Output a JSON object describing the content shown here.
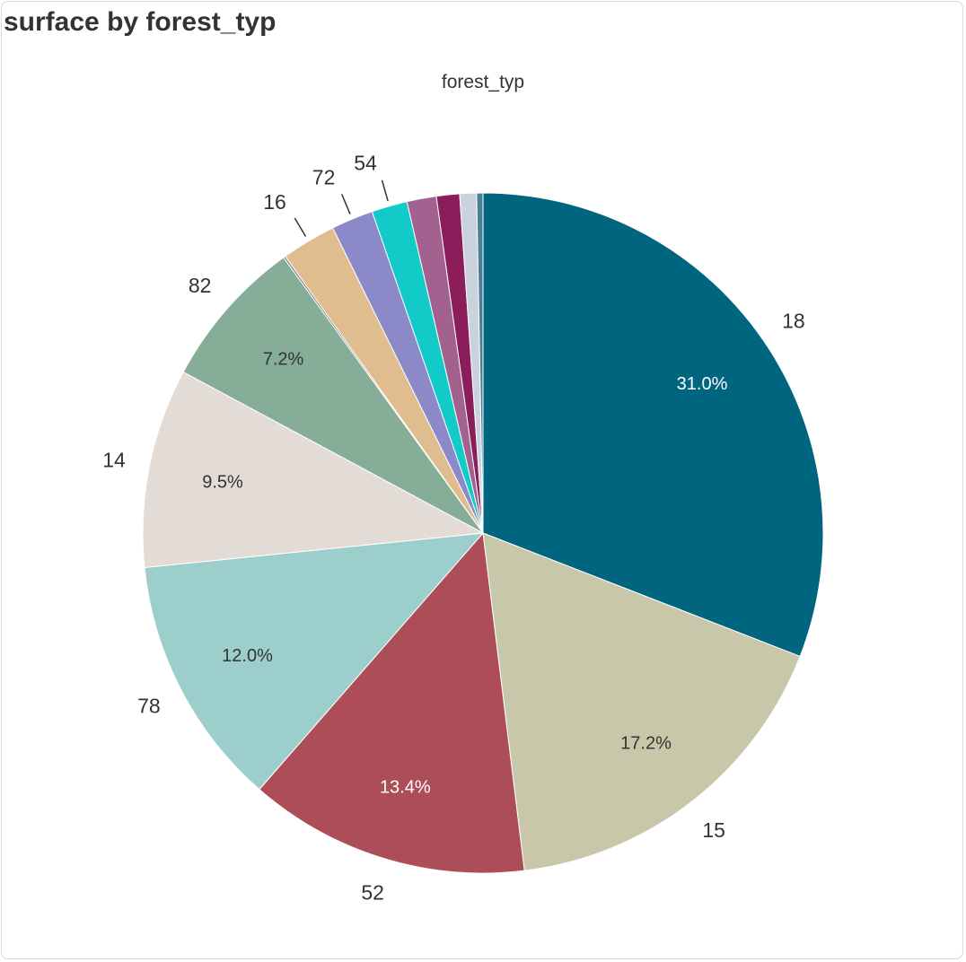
{
  "panel": {
    "title": "surface by forest_typ"
  },
  "chart_data": {
    "type": "pie",
    "title": "surface by forest_typ",
    "legend_title": "forest_typ",
    "slices": [
      {
        "label": "18",
        "percent": 31.0,
        "percent_label": "31.0%",
        "color": "#00657f",
        "text_color": "#ffffff"
      },
      {
        "label": "15",
        "percent": 17.2,
        "percent_label": "17.2%",
        "color": "#c8c7a9",
        "text_color": "#333333"
      },
      {
        "label": "52",
        "percent": 13.4,
        "percent_label": "13.4%",
        "color": "#ad4d58",
        "text_color": "#ffffff"
      },
      {
        "label": "78",
        "percent": 12.0,
        "percent_label": "12.0%",
        "color": "#9ccfcc",
        "text_color": "#333333"
      },
      {
        "label": "14",
        "percent": 9.5,
        "percent_label": "9.5%",
        "color": "#e3dbd6",
        "text_color": "#333333"
      },
      {
        "label": "82",
        "percent": 7.2,
        "percent_label": "7.2%",
        "color": "#86ad98",
        "text_color": "#333333"
      },
      {
        "label": "",
        "percent": 0.1,
        "percent_label": "",
        "color": "#7d7d7d",
        "text_color": "#333333"
      },
      {
        "label": "16",
        "percent": 2.6,
        "percent_label": "",
        "color": "#dfbd8e",
        "text_color": "#333333"
      },
      {
        "label": "72",
        "percent": 2.0,
        "percent_label": "",
        "color": "#8c89c8",
        "text_color": "#333333"
      },
      {
        "label": "54",
        "percent": 1.7,
        "percent_label": "",
        "color": "#12cbc9",
        "text_color": "#333333"
      },
      {
        "label": "",
        "percent": 1.4,
        "percent_label": "",
        "color": "#a2618f",
        "text_color": "#333333"
      },
      {
        "label": "",
        "percent": 1.1,
        "percent_label": "",
        "color": "#8a1d5a",
        "text_color": "#333333"
      },
      {
        "label": "",
        "percent": 0.8,
        "percent_label": "",
        "color": "#c9d2dd",
        "text_color": "#333333"
      },
      {
        "label": "",
        "percent": 0.3,
        "percent_label": "",
        "color": "#4a7f95",
        "text_color": "#333333"
      }
    ]
  }
}
